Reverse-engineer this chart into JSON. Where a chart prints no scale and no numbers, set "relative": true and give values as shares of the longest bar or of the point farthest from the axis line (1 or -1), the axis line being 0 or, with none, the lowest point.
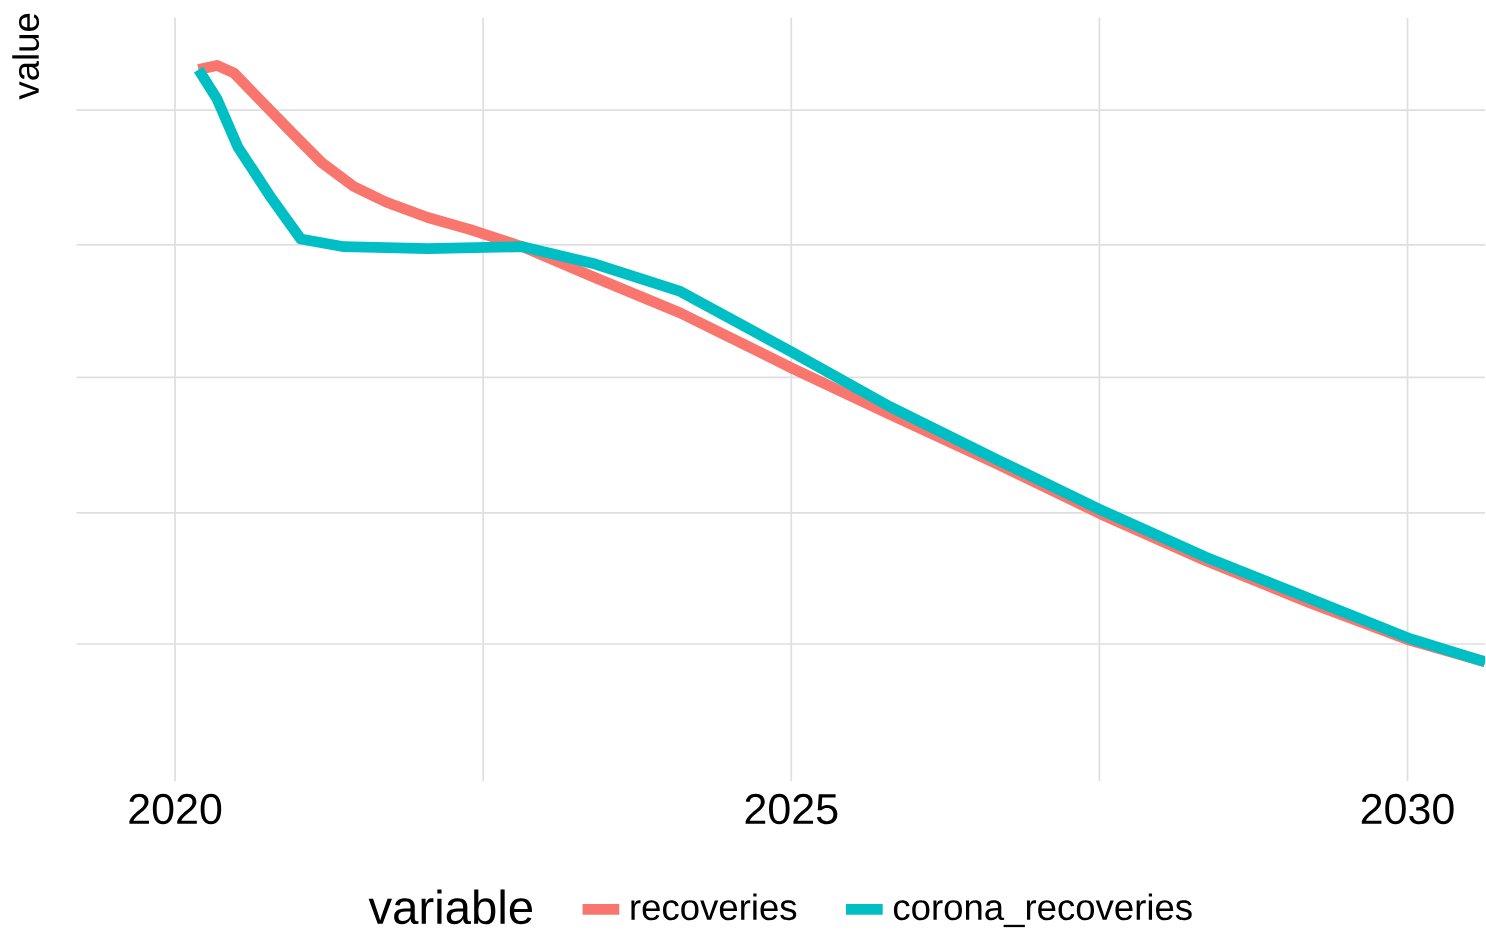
{
  "chart_data": {
    "type": "line",
    "ylabel": "value",
    "legend_title": "variable",
    "relative": true,
    "grid": true,
    "legend": "bottom",
    "xlim": [
      2019.2,
      2030.63
    ],
    "xticks": [
      2020,
      {
        "value": 2022.5,
        "label": null
      },
      2025,
      {
        "value": 2027.5,
        "label": null
      },
      2030
    ],
    "series": [
      {
        "name": "recoveries",
        "color": "#f8766d",
        "x": [
          2020.19,
          2020.34,
          2020.48,
          2020.68,
          2020.94,
          2021.19,
          2021.45,
          2021.71,
          2022.05,
          2022.39,
          2022.82,
          2023.41,
          2024.1,
          2025.0,
          2025.8,
          2026.66,
          2027.51,
          2028.36,
          2029.22,
          2030.02,
          2030.63
        ],
        "values": [
          0.993,
          1,
          0.987,
          0.944,
          0.889,
          0.837,
          0.797,
          0.771,
          0.745,
          0.725,
          0.696,
          0.644,
          0.585,
          0.493,
          0.415,
          0.333,
          0.248,
          0.17,
          0.098,
          0.036,
          0
        ]
      },
      {
        "name": "corona_recoveries",
        "color": "#00bfc4",
        "x": [
          2020.19,
          2020.34,
          2020.51,
          2020.77,
          2021.02,
          2021.37,
          2022.05,
          2022.82,
          2023.41,
          2024.1,
          2025.0,
          2025.8,
          2026.66,
          2027.51,
          2028.36,
          2029.22,
          2030.02,
          2030.63
        ],
        "values": [
          0.993,
          0.944,
          0.863,
          0.781,
          0.709,
          0.696,
          0.693,
          0.696,
          0.667,
          0.621,
          0.52,
          0.428,
          0.34,
          0.255,
          0.176,
          0.105,
          0.039,
          0
        ]
      }
    ]
  }
}
